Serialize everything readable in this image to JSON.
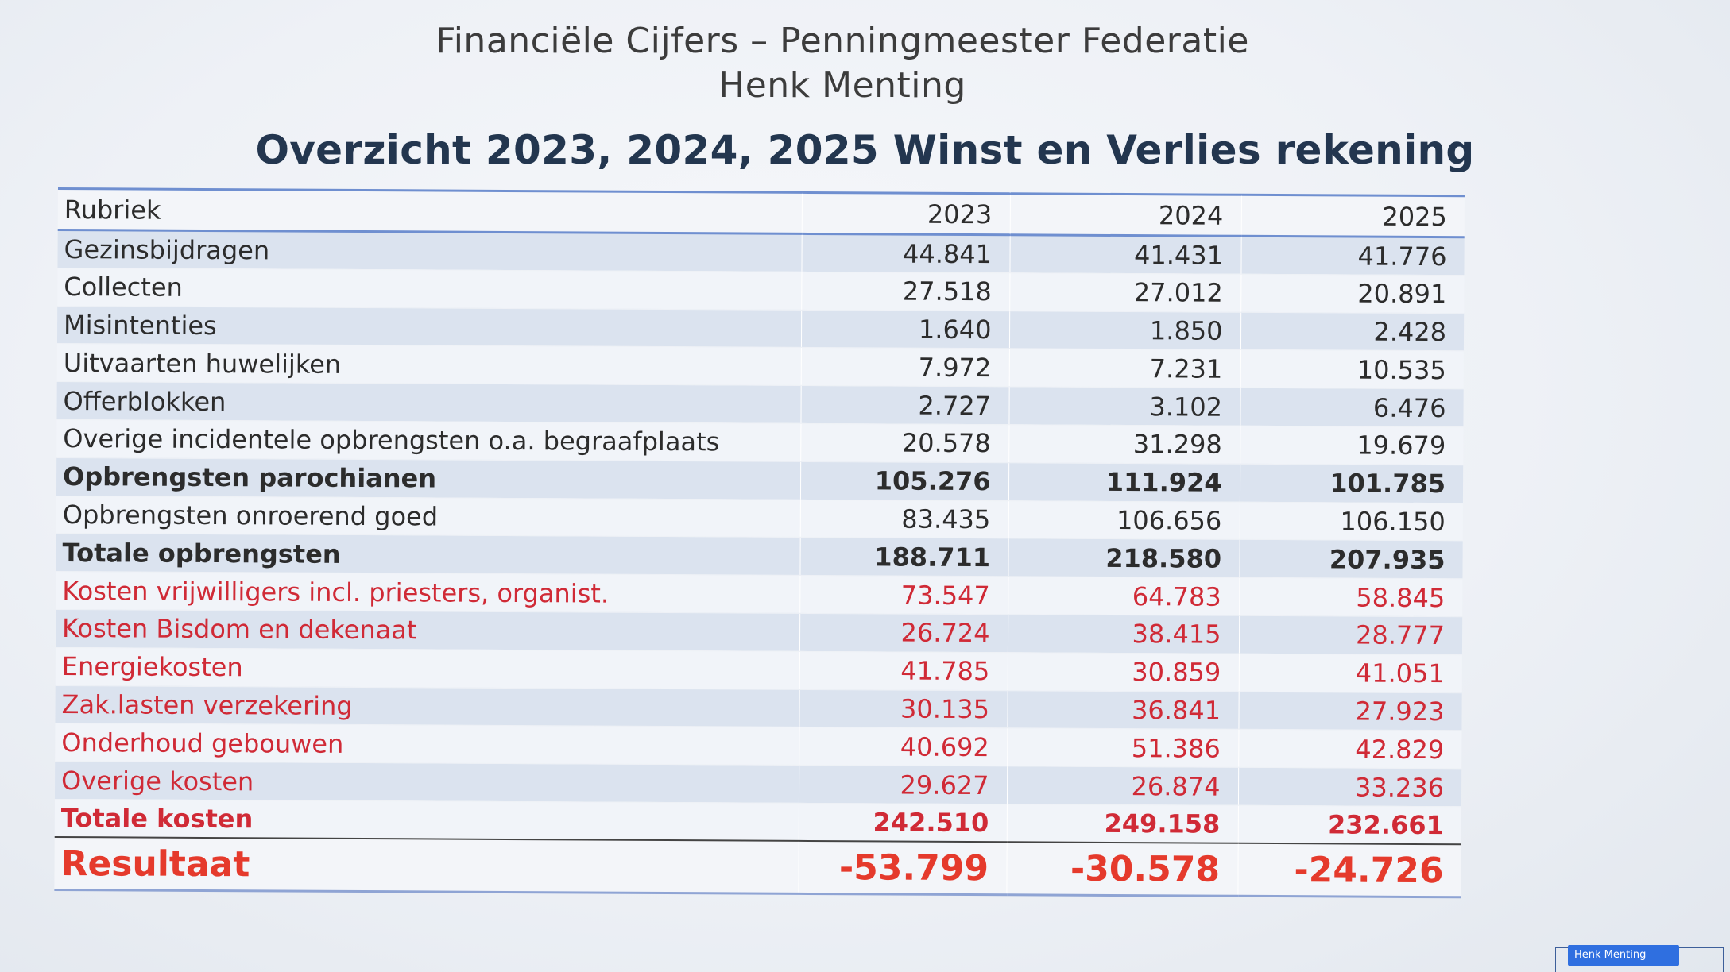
{
  "title": {
    "line1": "Financiële Cijfers – Penningmeester  Federatie",
    "line2": "Henk Menting"
  },
  "heading": "Overzicht 2023, 2024, 2025 Winst en Verlies rekening",
  "table": {
    "headers": [
      "Rubriek",
      "2023",
      "2024",
      "2025"
    ],
    "rows": [
      {
        "label": "Gezinsbijdragen",
        "values": [
          "44.841",
          "41.431",
          "41.776"
        ]
      },
      {
        "label": "Collecten",
        "values": [
          "27.518",
          "27.012",
          "20.891"
        ]
      },
      {
        "label": "Misintenties",
        "values": [
          "1.640",
          "1.850",
          "2.428"
        ]
      },
      {
        "label": "Uitvaarten huwelijken",
        "values": [
          "7.972",
          "7.231",
          "10.535"
        ]
      },
      {
        "label": "Offerblokken",
        "values": [
          "2.727",
          "3.102",
          "6.476"
        ]
      },
      {
        "label": "Overige incidentele opbrengsten o.a. begraafplaats",
        "values": [
          "20.578",
          "31.298",
          "19.679"
        ]
      },
      {
        "label": "Opbrengsten parochianen",
        "values": [
          "105.276",
          "111.924",
          "101.785"
        ]
      },
      {
        "label": "Opbrengsten onroerend goed",
        "values": [
          "83.435",
          "106.656",
          "106.150"
        ]
      },
      {
        "label": "Totale opbrengsten",
        "values": [
          "188.711",
          "218.580",
          "207.935"
        ]
      },
      {
        "label": "Kosten vrijwilligers incl. priesters, organist.",
        "values": [
          "73.547",
          "64.783",
          "58.845"
        ]
      },
      {
        "label": "Kosten Bisdom en dekenaat",
        "values": [
          "26.724",
          "38.415",
          "28.777"
        ]
      },
      {
        "label": "Energiekosten",
        "values": [
          "41.785",
          "30.859",
          "41.051"
        ]
      },
      {
        "label": "Zak.lasten verzekering",
        "values": [
          "30.135",
          "36.841",
          "27.923"
        ]
      },
      {
        "label": "Onderhoud gebouwen",
        "values": [
          "40.692",
          "51.386",
          "42.829"
        ]
      },
      {
        "label": "Overige kosten",
        "values": [
          "29.627",
          "26.874",
          "33.236"
        ]
      },
      {
        "label": "Totale kosten",
        "values": [
          "242.510",
          "249.158",
          "232.661"
        ]
      },
      {
        "label": "Resultaat",
        "values": [
          "-53.799",
          "-30.578",
          "-24.726"
        ]
      }
    ]
  },
  "presenter_tag": "Henk Menting",
  "colors": {
    "heading": "#23364f",
    "cost_text": "#d02a36",
    "result_text": "#e53a2c",
    "row_band_dark": "#dbe3ef",
    "row_band_light": "#f1f4f9",
    "header_rule": "#6f8fd0"
  }
}
